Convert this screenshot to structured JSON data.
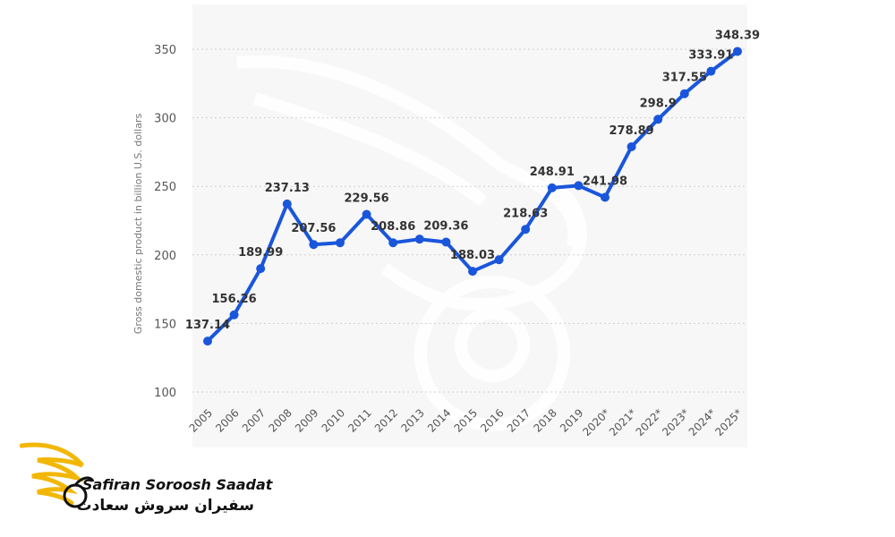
{
  "chart_data": {
    "type": "line",
    "title": "",
    "xlabel": "",
    "ylabel": "Gross domestic product in billion U.S. dollars",
    "ylim": [
      100,
      350
    ],
    "yticks": [
      100,
      150,
      200,
      250,
      300,
      350
    ],
    "grid": true,
    "categories": [
      "2005",
      "2006",
      "2007",
      "2008",
      "2009",
      "2010",
      "2011",
      "2012",
      "2013",
      "2014",
      "2015",
      "2016",
      "2017",
      "2018",
      "2019",
      "2020*",
      "2021*",
      "2022*",
      "2023*",
      "2024*",
      "2025*"
    ],
    "series": [
      {
        "color": "#1a56db",
        "values": [
          137.14,
          156.26,
          189.99,
          237.13,
          207.56,
          208.86,
          229.56,
          208.86,
          211.5,
          209.36,
          188.03,
          196.5,
          218.63,
          248.91,
          250.5,
          241.98,
          278.89,
          298.9,
          317.55,
          333.91,
          348.39
        ]
      }
    ],
    "data_labels": [
      {
        "index": 0,
        "text": "137.14"
      },
      {
        "index": 1,
        "text": "156.26"
      },
      {
        "index": 2,
        "text": "189.99"
      },
      {
        "index": 3,
        "text": "237.13"
      },
      {
        "index": 4,
        "text": "207.56"
      },
      {
        "index": 6,
        "text": "229.56"
      },
      {
        "index": 7,
        "text": "208.86"
      },
      {
        "index": 9,
        "text": "209.36"
      },
      {
        "index": 10,
        "text": "188.03"
      },
      {
        "index": 12,
        "text": "218.63"
      },
      {
        "index": 13,
        "text": "248.91"
      },
      {
        "index": 15,
        "text": "241.98"
      },
      {
        "index": 16,
        "text": "278.89"
      },
      {
        "index": 17,
        "text": "298.9"
      },
      {
        "index": 18,
        "text": "317.55"
      },
      {
        "index": 19,
        "text": "333.91"
      },
      {
        "index": 20,
        "text": "348.39"
      }
    ]
  },
  "brand": {
    "name_en": "Safiran Soroosh Saadat",
    "name_fa": "سفیران سروش سعادت",
    "logo_icon": "wing-swan-logo-icon",
    "accent_color": "#f2b705"
  }
}
